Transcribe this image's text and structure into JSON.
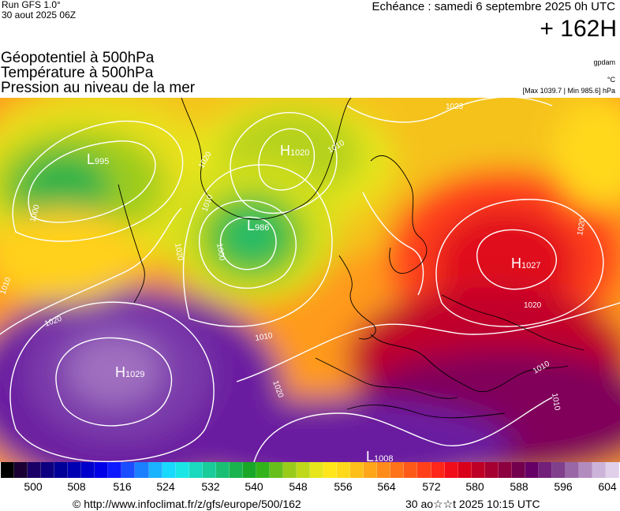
{
  "header": {
    "run_line1": "Run GFS 1.0°",
    "run_line2": "30 aout 2025 06Z",
    "echeance": "Echéance : samedi 6 septembre 2025 0h UTC",
    "lead_time": "+ 162H"
  },
  "titles": {
    "line1": "Géopotentiel à 500hPa",
    "line2": "Température à 500hPa",
    "line3": "Pression au niveau de la mer"
  },
  "units": {
    "geopotential": "gpdam",
    "temperature": "°C",
    "minmax": "[Max 1039.7 | Min 985.6] hPa"
  },
  "pressure_centers": [
    {
      "type": "L",
      "value": "995"
    },
    {
      "type": "H",
      "value": "1020"
    },
    {
      "type": "L",
      "value": "986"
    },
    {
      "type": "H",
      "value": "1027"
    },
    {
      "type": "H",
      "value": "1029"
    },
    {
      "type": "L",
      "value": "1008"
    }
  ],
  "isobar_labels": [
    "1010",
    "1020",
    "1000",
    "1010",
    "1020",
    "1023",
    "1020",
    "1010",
    "1000",
    "1010",
    "1020",
    "1020",
    "1010",
    "1020",
    "1010"
  ],
  "colorbar": {
    "colors": [
      "#000000",
      "#1a0033",
      "#1a0066",
      "#0d0080",
      "#000099",
      "#0000b3",
      "#0000cc",
      "#0000e6",
      "#0d1aff",
      "#1a4dff",
      "#1a80ff",
      "#1ab3ff",
      "#1ad9ff",
      "#1ae6e6",
      "#1ad9bf",
      "#1acc99",
      "#1abf73",
      "#1ab34d",
      "#1aa626",
      "#33b31a",
      "#66bf1a",
      "#99cc1a",
      "#bfd91a",
      "#e6e61a",
      "#ffe61a",
      "#ffd91a",
      "#ffbf1a",
      "#ffa61a",
      "#ff8c1a",
      "#ff731a",
      "#ff591a",
      "#ff401a",
      "#ff261a",
      "#f20d1a",
      "#d9001a",
      "#bf0026",
      "#a60033",
      "#8c0040",
      "#73004d",
      "#660066",
      "#73207a",
      "#80408c",
      "#9966a6",
      "#b38cbf",
      "#ccb3d9",
      "#e0d0ea"
    ],
    "labels": [
      "500",
      "508",
      "516",
      "524",
      "532",
      "540",
      "548",
      "556",
      "564",
      "572",
      "580",
      "588",
      "596",
      "604"
    ]
  },
  "footer": {
    "url": "© http://www.infoclimat.fr/z/gfs/europe/500/162",
    "timestamp": "30 ao☆☆t 2025 10:15 UTC"
  }
}
